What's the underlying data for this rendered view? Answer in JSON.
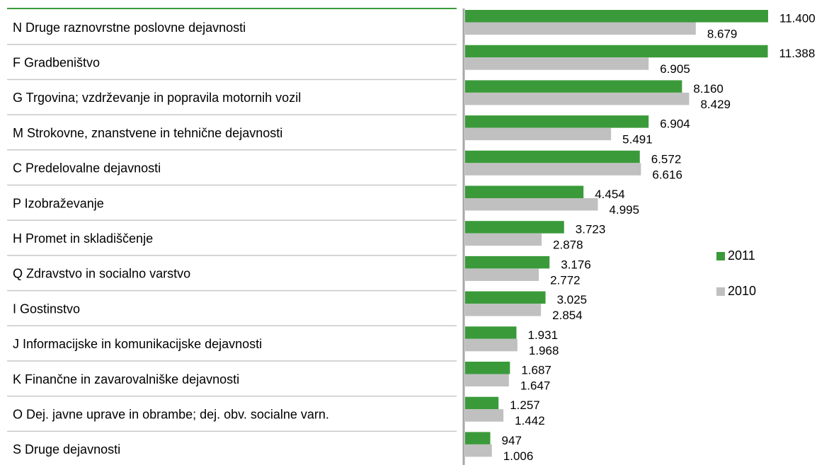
{
  "chart_data": {
    "type": "bar",
    "orientation": "horizontal",
    "categories": [
      "N Druge raznovrstne poslovne dejavnosti",
      "F Gradbeništvo",
      "G Trgovina; vzdrževanje in popravila motornih vozil",
      "M Strokovne, znanstvene in tehnične dejavnosti",
      "C Predelovalne dejavnosti",
      "P Izobraževanje",
      "H Promet in skladiščenje",
      "Q Zdravstvo in socialno varstvo",
      "I Gostinstvo",
      "J Informacijske in komunikacijske dejavnosti",
      "K Finančne in zavarovalniške dejavnosti",
      "O Dej. javne uprave in obrambe; dej. obv. socialne varn.",
      "S Druge dejavnosti"
    ],
    "series": [
      {
        "name": "2011",
        "color": "#3a9a3a",
        "values": [
          11400,
          11388,
          8160,
          6904,
          6572,
          4454,
          3723,
          3176,
          3025,
          1931,
          1687,
          1257,
          947
        ],
        "value_labels": [
          "11.400",
          "11.388",
          "8.160",
          "6.904",
          "6.572",
          "4.454",
          "3.723",
          "3.176",
          "3.025",
          "1.931",
          "1.687",
          "1.257",
          "947"
        ]
      },
      {
        "name": "2010",
        "color": "#c0c0c0",
        "values": [
          8679,
          6905,
          8429,
          5491,
          6616,
          4995,
          2878,
          2772,
          2854,
          1968,
          1647,
          1442,
          1006
        ],
        "value_labels": [
          "8.679",
          "6.905",
          "8.429",
          "5.491",
          "6.616",
          "4.995",
          "2.878",
          "2.772",
          "2.854",
          "1.968",
          "1.647",
          "1.442",
          "1.006"
        ]
      }
    ],
    "legend": "right"
  }
}
